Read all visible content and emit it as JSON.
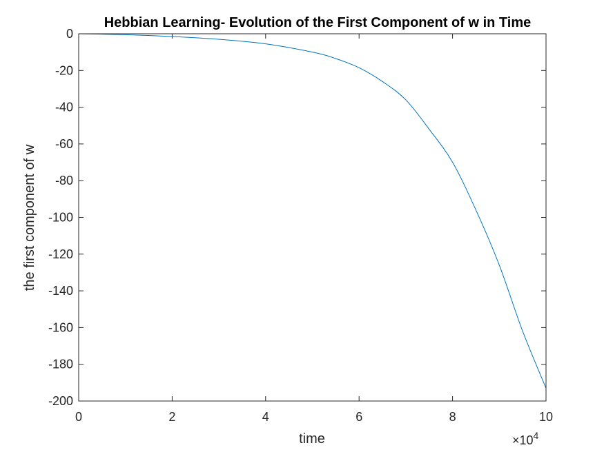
{
  "chart_data": {
    "type": "line",
    "title": "Hebbian Learning- Evolution of the First Component of w in Time",
    "xlabel": "time",
    "ylabel": "the first component of w",
    "x_exponent_label": "×10",
    "x_exponent_power": "4",
    "xlim": [
      0,
      100000
    ],
    "ylim": [
      -200,
      0
    ],
    "x_ticks": [
      0,
      20000,
      40000,
      60000,
      80000,
      100000
    ],
    "x_tick_labels": [
      "0",
      "2",
      "4",
      "6",
      "8",
      "10"
    ],
    "y_ticks": [
      0,
      -20,
      -40,
      -60,
      -80,
      -100,
      -120,
      -140,
      -160,
      -180,
      -200
    ],
    "y_tick_labels": [
      "0",
      "-20",
      "-40",
      "-60",
      "-80",
      "-100",
      "-120",
      "-140",
      "-160",
      "-180",
      "-200"
    ],
    "grid": false,
    "series": [
      {
        "color": "#0072BD",
        "x": [
          0,
          10000,
          20000,
          30000,
          40000,
          50000,
          55000,
          60000,
          65000,
          70000,
          75000,
          80000,
          85000,
          90000,
          95000,
          100000
        ],
        "y": [
          0,
          -0.5,
          -1.5,
          -3,
          -5.5,
          -10,
          -13.5,
          -18.5,
          -26,
          -36,
          -52,
          -70,
          -96,
          -126,
          -162,
          -193
        ]
      }
    ],
    "line_color": "#0072BD",
    "axis_color": "#262626"
  }
}
